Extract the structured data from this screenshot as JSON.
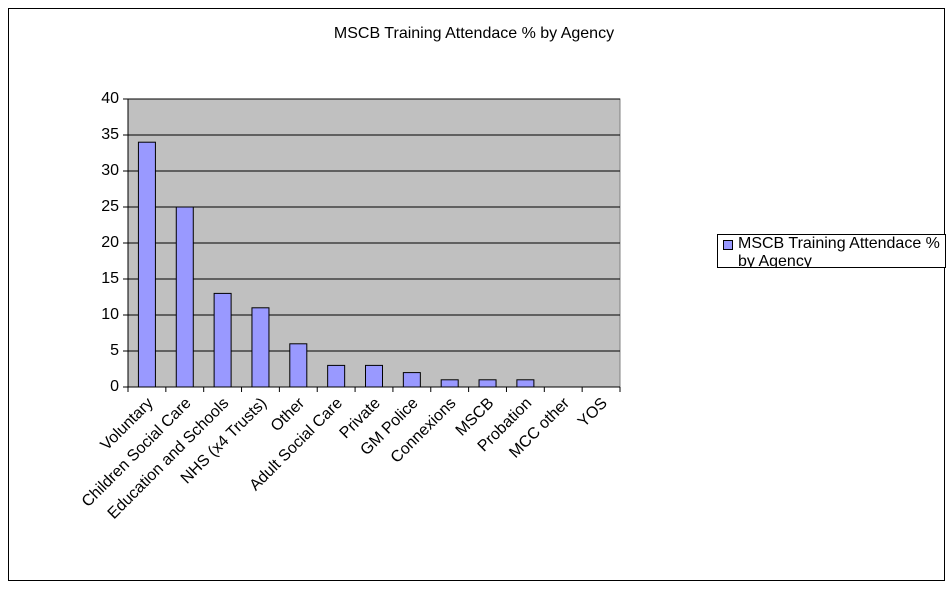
{
  "chart_data": {
    "type": "bar",
    "title": "MSCB Training Attendace % by Agency",
    "categories": [
      "Voluntary",
      "Children Social Care",
      "Education and Schools",
      "NHS (x4 Trusts)",
      "Other",
      "Adult Social Care",
      "Private",
      "GM Police",
      "Connexions",
      "MSCB",
      "Probation",
      "MCC other",
      "YOS"
    ],
    "series": [
      {
        "name": "MSCB Training Attendace % by Agency",
        "color": "#9999ff",
        "values": [
          34,
          25,
          13,
          11,
          6,
          3,
          3,
          2,
          1,
          1,
          1,
          0,
          0
        ]
      }
    ],
    "ylim": [
      0,
      40
    ],
    "yticks": [
      0,
      5,
      10,
      15,
      20,
      25,
      30,
      35,
      40
    ],
    "grid": true,
    "legend": "right",
    "plot_background": "#c0c0c0"
  }
}
